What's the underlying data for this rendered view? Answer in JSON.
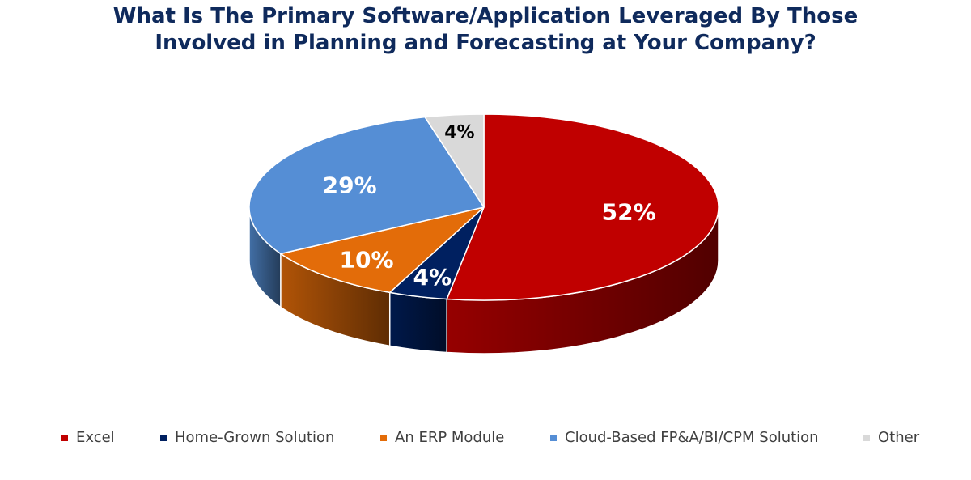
{
  "chart_data": {
    "type": "pie",
    "title_lines": [
      "What Is The Primary Software/Application Leveraged By Those",
      "Involved in Planning and Forecasting at Your Company?"
    ],
    "style": "3d",
    "legend_position": "bottom",
    "slices": [
      {
        "label": "Excel",
        "value": 52,
        "data_label": "52%",
        "color": "#c00000",
        "label_color": "#ffffff"
      },
      {
        "label": "Home-Grown Solution",
        "value": 4,
        "data_label": "4%",
        "color": "#002060",
        "label_color": "#ffffff"
      },
      {
        "label": "An ERP Module",
        "value": 10,
        "data_label": "10%",
        "color": "#e36c09",
        "label_color": "#ffffff"
      },
      {
        "label": "Cloud-Based FP&A/BI/CPM Solution",
        "value": 29,
        "data_label": "29%",
        "color": "#558ed5",
        "label_color": "#ffffff"
      },
      {
        "label": "Other",
        "value": 4,
        "data_label": "4%",
        "color": "#d9d9d9",
        "label_color": "#000000"
      }
    ]
  }
}
